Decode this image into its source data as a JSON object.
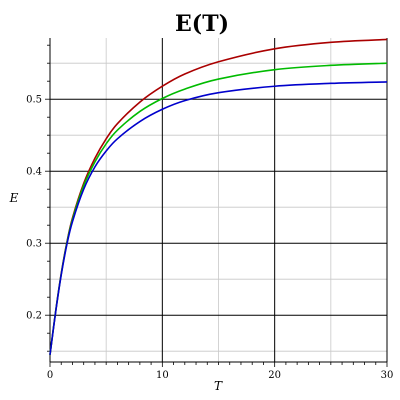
{
  "chart_data": {
    "type": "line",
    "title": "E(T)",
    "xlabel": "T",
    "ylabel": "E",
    "xlim": [
      0,
      30
    ],
    "ylim": [
      0.135,
      0.585
    ],
    "xticks": [
      0,
      10,
      20,
      30
    ],
    "yticks": [
      0.2,
      0.3,
      0.4,
      0.5
    ],
    "ytick_labels": [
      "0.2",
      "0.3",
      "0.4",
      "0.5"
    ],
    "xtick_labels": [
      "0",
      "10",
      "20",
      "30"
    ],
    "grid": true,
    "series": [
      {
        "color": "#aa0000",
        "x": [
          0,
          0.5,
          1,
          1.5,
          2,
          3,
          4,
          5,
          6,
          8,
          10,
          12,
          15,
          20,
          25,
          30
        ],
        "y": [
          0.145,
          0.205,
          0.258,
          0.301,
          0.335,
          0.383,
          0.418,
          0.445,
          0.466,
          0.496,
          0.518,
          0.535,
          0.552,
          0.57,
          0.579,
          0.583
        ]
      },
      {
        "color": "#00bb00",
        "x": [
          0,
          0.5,
          1,
          1.5,
          2,
          3,
          4,
          5,
          6,
          8,
          10,
          12,
          15,
          20,
          25,
          30
        ],
        "y": [
          0.145,
          0.205,
          0.257,
          0.3,
          0.333,
          0.38,
          0.413,
          0.438,
          0.457,
          0.483,
          0.501,
          0.514,
          0.528,
          0.541,
          0.547,
          0.55
        ]
      },
      {
        "color": "#0000cc",
        "x": [
          0,
          0.5,
          1,
          1.5,
          2,
          3,
          4,
          5,
          6,
          8,
          10,
          12,
          15,
          20,
          25,
          30
        ],
        "y": [
          0.145,
          0.204,
          0.256,
          0.298,
          0.33,
          0.375,
          0.406,
          0.428,
          0.445,
          0.469,
          0.486,
          0.498,
          0.509,
          0.518,
          0.522,
          0.524
        ]
      }
    ]
  }
}
